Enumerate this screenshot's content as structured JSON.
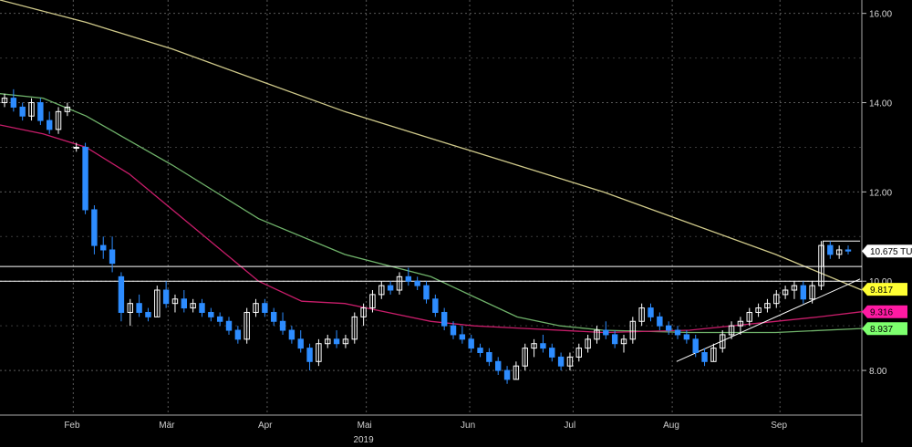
{
  "chart_data": {
    "type": "candlestick",
    "title": "",
    "xlabel": "2019",
    "ylabel": "",
    "ylim": [
      7.0,
      16.3
    ],
    "y_ticks": [
      "8.00",
      "10.00",
      "12.00",
      "14.00",
      "16.00"
    ],
    "x_ticks": [
      "Feb",
      "Mär",
      "Apr",
      "Mai",
      "Jun",
      "Jul",
      "Aug",
      "Sep"
    ],
    "year_label": "2019",
    "grid": true,
    "colors": {
      "background": "#000000",
      "up_candle": "#ffffff",
      "down_candle": "#2d8cff",
      "ma_long": "#cfc98a",
      "ma_mid": "#6fb26a",
      "ma_short": "#c81d6a",
      "support_lines": "#ffffff"
    },
    "price_badges": [
      {
        "label": "10.675 TU",
        "value": 10.675,
        "bg": "#ffffff",
        "fg": "#000000"
      },
      {
        "label": "9.817",
        "value": 9.817,
        "bg": "#ffff33",
        "fg": "#000000"
      },
      {
        "label": "9.316",
        "value": 9.316,
        "bg": "#ff1aa3",
        "fg": "#000000"
      },
      {
        "label": "8.937",
        "value": 8.937,
        "bg": "#7dff6e",
        "fg": "#000000"
      }
    ],
    "horizontal_lines": [
      10.0,
      10.33
    ],
    "range_box": {
      "x_start": 0.955,
      "x_end": 0.998,
      "value": 10.9
    },
    "trendline": {
      "start": [
        0.785,
        8.2
      ],
      "end": [
        0.998,
        10.05
      ]
    },
    "series": [
      {
        "name": "",
        "kind": "moving_average",
        "x": [
          0.0,
          0.1,
          0.2,
          0.3,
          0.4,
          0.5,
          0.6,
          0.7,
          0.8,
          0.9,
          1.0
        ],
        "y": [
          16.3,
          15.8,
          15.2,
          14.5,
          13.8,
          13.2,
          12.6,
          12.0,
          11.3,
          10.6,
          9.8
        ]
      },
      {
        "name": "",
        "kind": "moving_average",
        "x": [
          0.0,
          0.05,
          0.1,
          0.2,
          0.3,
          0.4,
          0.5,
          0.6,
          0.65,
          0.7,
          0.8,
          0.9,
          1.0
        ],
        "y": [
          14.2,
          14.1,
          13.7,
          12.6,
          11.4,
          10.6,
          10.1,
          9.2,
          9.0,
          8.9,
          8.85,
          8.85,
          8.94
        ]
      },
      {
        "name": "",
        "kind": "moving_average",
        "x": [
          0.0,
          0.05,
          0.1,
          0.15,
          0.2,
          0.25,
          0.3,
          0.35,
          0.4,
          0.45,
          0.5,
          0.55,
          0.6,
          0.7,
          0.8,
          0.9,
          0.95,
          1.0
        ],
        "y": [
          13.5,
          13.3,
          13.0,
          12.4,
          11.6,
          10.8,
          10.0,
          9.55,
          9.5,
          9.3,
          9.1,
          9.0,
          8.95,
          8.85,
          8.9,
          9.1,
          9.2,
          9.316
        ]
      }
    ],
    "ohlc": [
      [
        14.0,
        14.2,
        13.9,
        14.1
      ],
      [
        14.1,
        14.3,
        13.8,
        13.9
      ],
      [
        13.9,
        14.0,
        13.6,
        13.7
      ],
      [
        13.7,
        14.1,
        13.6,
        14.0
      ],
      [
        14.0,
        14.1,
        13.5,
        13.6
      ],
      [
        13.6,
        13.8,
        13.3,
        13.4
      ],
      [
        13.4,
        13.9,
        13.3,
        13.8
      ],
      [
        13.8,
        14.0,
        13.7,
        13.9
      ],
      [
        13.0,
        13.1,
        12.9,
        13.0
      ],
      [
        13.0,
        13.1,
        11.5,
        11.6
      ],
      [
        11.6,
        11.7,
        10.6,
        10.8
      ],
      [
        10.8,
        11.0,
        10.5,
        10.7
      ],
      [
        10.7,
        11.0,
        10.2,
        10.4
      ],
      [
        10.1,
        10.2,
        9.1,
        9.3
      ],
      [
        9.3,
        9.6,
        9.0,
        9.5
      ],
      [
        9.5,
        9.7,
        9.2,
        9.3
      ],
      [
        9.3,
        9.4,
        9.1,
        9.2
      ],
      [
        9.2,
        9.9,
        9.2,
        9.8
      ],
      [
        9.8,
        10.0,
        9.4,
        9.5
      ],
      [
        9.5,
        9.7,
        9.3,
        9.6
      ],
      [
        9.6,
        9.8,
        9.3,
        9.4
      ],
      [
        9.4,
        9.6,
        9.3,
        9.5
      ],
      [
        9.5,
        9.6,
        9.2,
        9.3
      ],
      [
        9.3,
        9.4,
        9.1,
        9.2
      ],
      [
        9.2,
        9.3,
        9.0,
        9.1
      ],
      [
        9.1,
        9.2,
        8.8,
        8.9
      ],
      [
        8.9,
        9.0,
        8.6,
        8.7
      ],
      [
        8.7,
        9.4,
        8.6,
        9.3
      ],
      [
        9.3,
        9.6,
        9.2,
        9.5
      ],
      [
        9.5,
        9.6,
        9.2,
        9.3
      ],
      [
        9.3,
        9.4,
        9.0,
        9.1
      ],
      [
        9.1,
        9.3,
        8.8,
        8.9
      ],
      [
        8.9,
        9.0,
        8.6,
        8.7
      ],
      [
        8.7,
        8.9,
        8.4,
        8.5
      ],
      [
        8.5,
        8.6,
        8.0,
        8.2
      ],
      [
        8.2,
        8.7,
        8.1,
        8.6
      ],
      [
        8.6,
        8.8,
        8.5,
        8.7
      ],
      [
        8.7,
        8.9,
        8.5,
        8.6
      ],
      [
        8.6,
        8.8,
        8.5,
        8.7
      ],
      [
        8.7,
        9.3,
        8.6,
        9.2
      ],
      [
        9.2,
        9.5,
        9.0,
        9.4
      ],
      [
        9.4,
        9.8,
        9.3,
        9.7
      ],
      [
        9.7,
        10.0,
        9.6,
        9.9
      ],
      [
        9.9,
        10.0,
        9.7,
        9.8
      ],
      [
        9.8,
        10.2,
        9.7,
        10.1
      ],
      [
        10.1,
        10.3,
        9.9,
        10.0
      ],
      [
        10.0,
        10.1,
        9.8,
        9.9
      ],
      [
        9.9,
        10.0,
        9.5,
        9.6
      ],
      [
        9.6,
        9.7,
        9.2,
        9.3
      ],
      [
        9.3,
        9.4,
        8.9,
        9.0
      ],
      [
        9.0,
        9.1,
        8.7,
        8.8
      ],
      [
        8.8,
        9.0,
        8.6,
        8.7
      ],
      [
        8.7,
        8.8,
        8.4,
        8.5
      ],
      [
        8.5,
        8.6,
        8.3,
        8.4
      ],
      [
        8.4,
        8.5,
        8.1,
        8.2
      ],
      [
        8.2,
        8.3,
        7.9,
        8.0
      ],
      [
        8.0,
        8.1,
        7.7,
        7.8
      ],
      [
        7.8,
        8.2,
        7.8,
        8.1
      ],
      [
        8.1,
        8.6,
        8.0,
        8.5
      ],
      [
        8.5,
        8.7,
        8.3,
        8.6
      ],
      [
        8.6,
        8.8,
        8.4,
        8.5
      ],
      [
        8.5,
        8.6,
        8.2,
        8.3
      ],
      [
        8.3,
        8.4,
        8.0,
        8.1
      ],
      [
        8.1,
        8.4,
        8.0,
        8.3
      ],
      [
        8.3,
        8.6,
        8.2,
        8.5
      ],
      [
        8.5,
        8.8,
        8.4,
        8.7
      ],
      [
        8.7,
        9.0,
        8.6,
        8.9
      ],
      [
        8.9,
        9.1,
        8.7,
        8.8
      ],
      [
        8.8,
        8.9,
        8.5,
        8.6
      ],
      [
        8.6,
        8.8,
        8.4,
        8.7
      ],
      [
        8.7,
        9.2,
        8.6,
        9.1
      ],
      [
        9.1,
        9.5,
        9.0,
        9.4
      ],
      [
        9.4,
        9.5,
        9.1,
        9.2
      ],
      [
        9.2,
        9.3,
        8.9,
        9.0
      ],
      [
        9.0,
        9.1,
        8.8,
        8.9
      ],
      [
        8.9,
        9.0,
        8.7,
        8.8
      ],
      [
        8.8,
        8.9,
        8.6,
        8.7
      ],
      [
        8.7,
        8.8,
        8.3,
        8.4
      ],
      [
        8.4,
        8.5,
        8.1,
        8.2
      ],
      [
        8.2,
        8.6,
        8.2,
        8.5
      ],
      [
        8.5,
        8.9,
        8.4,
        8.8
      ],
      [
        8.8,
        9.1,
        8.7,
        9.0
      ],
      [
        9.0,
        9.2,
        8.8,
        9.1
      ],
      [
        9.1,
        9.4,
        9.0,
        9.3
      ],
      [
        9.3,
        9.5,
        9.2,
        9.4
      ],
      [
        9.4,
        9.6,
        9.3,
        9.5
      ],
      [
        9.5,
        9.8,
        9.4,
        9.7
      ],
      [
        9.7,
        9.9,
        9.6,
        9.8
      ],
      [
        9.8,
        10.0,
        9.6,
        9.9
      ],
      [
        9.9,
        10.0,
        9.5,
        9.6
      ],
      [
        9.6,
        10.0,
        9.5,
        9.9
      ],
      [
        9.9,
        10.9,
        9.8,
        10.8
      ],
      [
        10.8,
        10.9,
        10.5,
        10.6
      ],
      [
        10.6,
        10.8,
        10.5,
        10.7
      ],
      [
        10.7,
        10.8,
        10.6,
        10.675
      ]
    ]
  }
}
